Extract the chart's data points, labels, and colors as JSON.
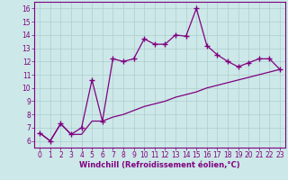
{
  "xlabel": "Windchill (Refroidissement éolien,°C)",
  "bg_color": "#cce8e8",
  "line_color": "#800080",
  "grid_color": "#b0cece",
  "x_values": [
    0,
    1,
    2,
    3,
    4,
    5,
    6,
    7,
    8,
    9,
    10,
    11,
    12,
    13,
    14,
    15,
    16,
    17,
    18,
    19,
    20,
    21,
    22,
    23
  ],
  "y_series1": [
    6.6,
    6.0,
    7.3,
    6.5,
    7.0,
    10.6,
    7.5,
    12.2,
    12.0,
    12.2,
    13.7,
    13.3,
    13.3,
    14.0,
    13.9,
    16.0,
    13.2,
    12.5,
    12.0,
    11.6,
    11.9,
    12.2,
    12.2,
    11.4
  ],
  "y_series2": [
    6.6,
    6.0,
    7.3,
    6.5,
    6.5,
    7.5,
    7.5,
    7.8,
    8.0,
    8.3,
    8.6,
    8.8,
    9.0,
    9.3,
    9.5,
    9.7,
    10.0,
    10.2,
    10.4,
    10.6,
    10.8,
    11.0,
    11.2,
    11.4
  ],
  "xlim": [
    -0.5,
    23.5
  ],
  "ylim": [
    5.5,
    16.5
  ],
  "yticks": [
    6,
    7,
    8,
    9,
    10,
    11,
    12,
    13,
    14,
    15,
    16
  ],
  "xticks": [
    0,
    1,
    2,
    3,
    4,
    5,
    6,
    7,
    8,
    9,
    10,
    11,
    12,
    13,
    14,
    15,
    16,
    17,
    18,
    19,
    20,
    21,
    22,
    23
  ],
  "marker": "+",
  "markersize": 4,
  "linewidth": 0.9,
  "font_color": "#800080",
  "axis_fontsize": 6.0,
  "tick_fontsize": 5.5
}
